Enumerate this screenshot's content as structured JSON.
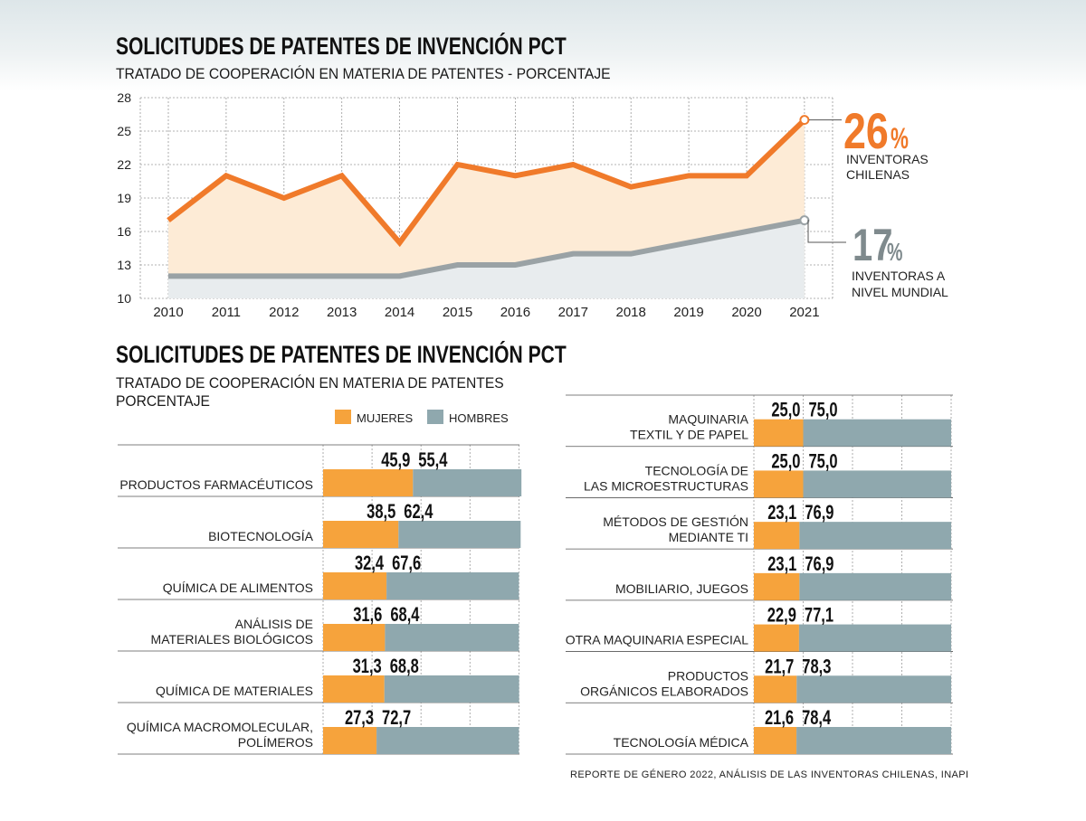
{
  "line_section": {
    "title": "SOLICITUDES DE PATENTES DE INVENCIÓN PCT",
    "subtitle": "TRATADO DE COOPERACIÓN EN MATERIA DE PATENTES - PORCENTAJE",
    "callout_chile": {
      "value": "26",
      "unit": "%",
      "line1": "INVENTORAS",
      "line2": "CHILENAS"
    },
    "callout_world": {
      "value": "17",
      "unit": "%",
      "line1": "INVENTORAS A",
      "line2": "NIVEL MUNDIAL"
    }
  },
  "bar_section": {
    "title": "SOLICITUDES DE PATENTES DE INVENCIÓN PCT",
    "subtitle_line1": "TRATADO DE COOPERACIÓN EN MATERIA DE PATENTES",
    "subtitle_line2": "PORCENTAJE",
    "source": "REPORTE DE GÉNERO 2022, ANÁLISIS DE LAS INVENTORAS CHILENAS, INAPI"
  },
  "chart_data": [
    {
      "type": "area",
      "x": [
        "2010",
        "2011",
        "2012",
        "2013",
        "2014",
        "2015",
        "2016",
        "2017",
        "2018",
        "2019",
        "2020",
        "2021"
      ],
      "ylim": [
        10,
        28
      ],
      "yticks": [
        "10",
        "13",
        "16",
        "19",
        "22",
        "25",
        "28"
      ],
      "grid": true,
      "series": [
        {
          "name": "INVENTORAS CHILENAS",
          "values": [
            17,
            21,
            19,
            21,
            15,
            22,
            21,
            22,
            20,
            21,
            21,
            26
          ],
          "color": "#f07a2a",
          "fill": "#fdebd6"
        },
        {
          "name": "INVENTORAS A NIVEL MUNDIAL",
          "values": [
            12,
            12,
            12,
            12,
            12,
            13,
            13,
            14,
            14,
            15,
            16,
            17
          ],
          "color": "#9aa2a5",
          "fill": "#e8ecee"
        }
      ]
    },
    {
      "type": "bar",
      "stacked": true,
      "orientation": "horizontal",
      "legend": [
        "MUJERES",
        "HOMBRES"
      ],
      "colors": {
        "mujeres": "#f6a33c",
        "hombres": "#8fa8ae"
      },
      "groups": [
        {
          "rows": [
            {
              "label": [
                "PRODUCTOS FARMACÉUTICOS"
              ],
              "mujeres": 45.9,
              "hombres": 55.4,
              "mujeres_label": "45,9",
              "hombres_label": "55,4"
            },
            {
              "label": [
                "BIOTECNOLOGÍA"
              ],
              "mujeres": 38.5,
              "hombres": 62.4,
              "mujeres_label": "38,5",
              "hombres_label": "62,4"
            },
            {
              "label": [
                "QUÍMICA DE ALIMENTOS"
              ],
              "mujeres": 32.4,
              "hombres": 67.6,
              "mujeres_label": "32,4",
              "hombres_label": "67,6"
            },
            {
              "label": [
                "ANÁLISIS DE",
                "MATERIALES BIOLÓGICOS"
              ],
              "mujeres": 31.6,
              "hombres": 68.4,
              "mujeres_label": "31,6",
              "hombres_label": "68,4"
            },
            {
              "label": [
                "QUÍMICA DE MATERIALES"
              ],
              "mujeres": 31.3,
              "hombres": 68.8,
              "mujeres_label": "31,3",
              "hombres_label": "68,8"
            },
            {
              "label": [
                "QUÍMICA MACROMOLECULAR,",
                "POLÍMEROS"
              ],
              "mujeres": 27.3,
              "hombres": 72.7,
              "mujeres_label": "27,3",
              "hombres_label": "72,7"
            }
          ]
        },
        {
          "rows": [
            {
              "label": [
                "MAQUINARIA",
                "TEXTIL Y DE PAPEL"
              ],
              "mujeres": 25.0,
              "hombres": 75.0,
              "mujeres_label": "25,0",
              "hombres_label": "75,0"
            },
            {
              "label": [
                "TECNOLOGÍA DE",
                "LAS MICROESTRUCTURAS"
              ],
              "mujeres": 25.0,
              "hombres": 75.0,
              "mujeres_label": "25,0",
              "hombres_label": "75,0"
            },
            {
              "label": [
                "MÉTODOS DE GESTIÓN",
                "MEDIANTE TI"
              ],
              "mujeres": 23.1,
              "hombres": 76.9,
              "mujeres_label": "23,1",
              "hombres_label": "76,9"
            },
            {
              "label": [
                "MOBILIARIO, JUEGOS"
              ],
              "mujeres": 23.1,
              "hombres": 76.9,
              "mujeres_label": "23,1",
              "hombres_label": "76,9"
            },
            {
              "label": [
                "OTRA MAQUINARIA ESPECIAL"
              ],
              "mujeres": 22.9,
              "hombres": 77.1,
              "mujeres_label": "22,9",
              "hombres_label": "77,1"
            },
            {
              "label": [
                "PRODUCTOS",
                "ORGÁNICOS ELABORADOS"
              ],
              "mujeres": 21.7,
              "hombres": 78.3,
              "mujeres_label": "21,7",
              "hombres_label": "78,3"
            },
            {
              "label": [
                "TECNOLOGÍA MÉDICA"
              ],
              "mujeres": 21.6,
              "hombres": 78.4,
              "mujeres_label": "21,6",
              "hombres_label": "78,4"
            }
          ]
        }
      ]
    }
  ]
}
